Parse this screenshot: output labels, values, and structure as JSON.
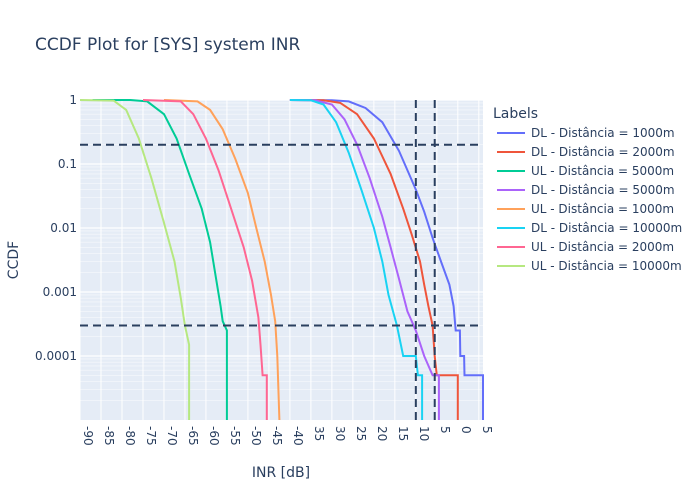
{
  "chart_data": {
    "type": "line",
    "title": "CCDF Plot for [SYS] system INR",
    "xlabel": "INR [dB]",
    "ylabel": "CCDF",
    "xlim": [
      -90,
      6
    ],
    "x_reversed": true,
    "x_reversed_note": "x axis runs from -90 (left) to 5 (right) with tick labels shown without sign decreasing toward the right",
    "ylim": [
      1e-05,
      1
    ],
    "yscale": "log",
    "grid": true,
    "legend_title": "Labels",
    "legend_position": "right",
    "x_ticks": [
      {
        "value": -90,
        "label": "-90"
      },
      {
        "value": -85,
        "label": "-85"
      },
      {
        "value": -80,
        "label": "-80"
      },
      {
        "value": -75,
        "label": "-75"
      },
      {
        "value": -70,
        "label": "-70"
      },
      {
        "value": -65,
        "label": "-65"
      },
      {
        "value": -60,
        "label": "-60"
      },
      {
        "value": -55,
        "label": "-55"
      },
      {
        "value": -50,
        "label": "-50"
      },
      {
        "value": -45,
        "label": "-45"
      },
      {
        "value": -40,
        "label": "-40"
      },
      {
        "value": -35,
        "label": "35"
      },
      {
        "value": -30,
        "label": "30"
      },
      {
        "value": -25,
        "label": "25"
      },
      {
        "value": -20,
        "label": "20"
      },
      {
        "value": -15,
        "label": "15"
      },
      {
        "value": -10,
        "label": "10"
      },
      {
        "value": -5,
        "label": "5"
      },
      {
        "value": 0,
        "label": "0"
      },
      {
        "value": 5,
        "label": "5"
      }
    ],
    "y_ticks": [
      {
        "value": 1,
        "label": "1"
      },
      {
        "value": 0.1,
        "label": "0.1"
      },
      {
        "value": 0.01,
        "label": "0.01"
      },
      {
        "value": 0.001,
        "label": "0.001"
      },
      {
        "value": 0.0001,
        "label": "0.0001"
      }
    ],
    "reference_lines": {
      "horizontal": [
        0.2,
        0.0003
      ],
      "vertical": [
        -10,
        -5.5
      ]
    },
    "series": [
      {
        "name": "DL - Distância = 1000m",
        "color": "#636efa",
        "points": [
          [
            -40,
            1
          ],
          [
            -30,
            0.99
          ],
          [
            -26,
            0.95
          ],
          [
            -22,
            0.75
          ],
          [
            -18,
            0.45
          ],
          [
            -14,
            0.16
          ],
          [
            -10,
            0.04
          ],
          [
            -8,
            0.018
          ],
          [
            -6,
            0.007
          ],
          [
            -4,
            0.003
          ],
          [
            -2,
            0.0013
          ],
          [
            -1,
            0.0006
          ],
          [
            -0.5,
            0.00025
          ],
          [
            0.5,
            0.00025
          ],
          [
            0.6,
            0.0001
          ],
          [
            1.5,
            0.0001
          ],
          [
            1.6,
            5e-05
          ],
          [
            6,
            5e-05
          ],
          [
            6,
            1e-05
          ]
        ]
      },
      {
        "name": "DL - Distância = 2000m",
        "color": "#ef553b",
        "points": [
          [
            -40,
            1
          ],
          [
            -32,
            0.99
          ],
          [
            -28,
            0.9
          ],
          [
            -24,
            0.6
          ],
          [
            -20,
            0.25
          ],
          [
            -16,
            0.07
          ],
          [
            -13,
            0.02
          ],
          [
            -11,
            0.008
          ],
          [
            -9,
            0.003
          ],
          [
            -8,
            0.0013
          ],
          [
            -7,
            0.0006
          ],
          [
            -6,
            0.0003
          ],
          [
            -5.5,
            0.0001
          ],
          [
            -5,
            5e-05
          ],
          [
            0,
            5e-05
          ],
          [
            0,
            1e-05
          ]
        ]
      },
      {
        "name": "UL - Distância = 5000m",
        "color": "#00cc96",
        "points": [
          [
            -87,
            1
          ],
          [
            -78,
            1
          ],
          [
            -74,
            0.95
          ],
          [
            -70,
            0.6
          ],
          [
            -67,
            0.25
          ],
          [
            -64,
            0.07
          ],
          [
            -61,
            0.02
          ],
          [
            -59,
            0.006
          ],
          [
            -57.5,
            0.0015
          ],
          [
            -56.5,
            0.0006
          ],
          [
            -56,
            0.00035
          ],
          [
            -55,
            0.00025
          ],
          [
            -55,
            1e-05
          ]
        ]
      },
      {
        "name": "DL - Distância = 5000m",
        "color": "#ab63fa",
        "points": [
          [
            -40,
            1
          ],
          [
            -34,
            0.99
          ],
          [
            -30,
            0.85
          ],
          [
            -27,
            0.5
          ],
          [
            -24,
            0.2
          ],
          [
            -21,
            0.06
          ],
          [
            -18,
            0.015
          ],
          [
            -16,
            0.005
          ],
          [
            -14,
            0.0016
          ],
          [
            -12,
            0.0005
          ],
          [
            -10,
            0.00025
          ],
          [
            -8,
            0.0001
          ],
          [
            -6,
            5e-05
          ],
          [
            -4.5,
            5e-05
          ],
          [
            -4.5,
            1e-05
          ]
        ]
      },
      {
        "name": "UL - Distância = 1000m",
        "color": "#ffa15a",
        "points": [
          [
            -70,
            1
          ],
          [
            -62,
            0.95
          ],
          [
            -59,
            0.7
          ],
          [
            -56,
            0.35
          ],
          [
            -53,
            0.12
          ],
          [
            -50,
            0.035
          ],
          [
            -48,
            0.01
          ],
          [
            -46,
            0.003
          ],
          [
            -44.5,
            0.0009
          ],
          [
            -43.5,
            0.00035
          ],
          [
            -43,
            0.0001
          ],
          [
            -42.5,
            1e-05
          ]
        ]
      },
      {
        "name": "DL - Distância = 10000m",
        "color": "#19d3f3",
        "points": [
          [
            -40,
            1
          ],
          [
            -35,
            0.99
          ],
          [
            -32,
            0.85
          ],
          [
            -29,
            0.45
          ],
          [
            -26,
            0.15
          ],
          [
            -23,
            0.04
          ],
          [
            -20,
            0.01
          ],
          [
            -18,
            0.003
          ],
          [
            -16.5,
            0.0009
          ],
          [
            -14.5,
            0.0003
          ],
          [
            -13,
            0.0001
          ],
          [
            -10,
            0.0001
          ],
          [
            -9.5,
            5e-05
          ],
          [
            -8.5,
            5e-05
          ],
          [
            -8.5,
            1e-05
          ]
        ]
      },
      {
        "name": "UL - Distância = 2000m",
        "color": "#ff6692",
        "points": [
          [
            -75,
            1
          ],
          [
            -66,
            0.95
          ],
          [
            -63,
            0.6
          ],
          [
            -60,
            0.25
          ],
          [
            -57,
            0.08
          ],
          [
            -54,
            0.02
          ],
          [
            -51,
            0.005
          ],
          [
            -49,
            0.0015
          ],
          [
            -47.5,
            0.0004
          ],
          [
            -47,
            0.00015
          ],
          [
            -46.5,
            5e-05
          ],
          [
            -45.5,
            5e-05
          ],
          [
            -45.5,
            1e-05
          ]
        ]
      },
      {
        "name": "UL - Distância = 10000m",
        "color": "#b6e880",
        "points": [
          [
            -90,
            1
          ],
          [
            -82,
            0.98
          ],
          [
            -79,
            0.7
          ],
          [
            -76,
            0.25
          ],
          [
            -73,
            0.06
          ],
          [
            -70,
            0.012
          ],
          [
            -67.5,
            0.003
          ],
          [
            -66,
            0.0008
          ],
          [
            -65,
            0.0003
          ],
          [
            -64,
            0.00015
          ],
          [
            -64,
            1e-05
          ]
        ]
      }
    ]
  }
}
